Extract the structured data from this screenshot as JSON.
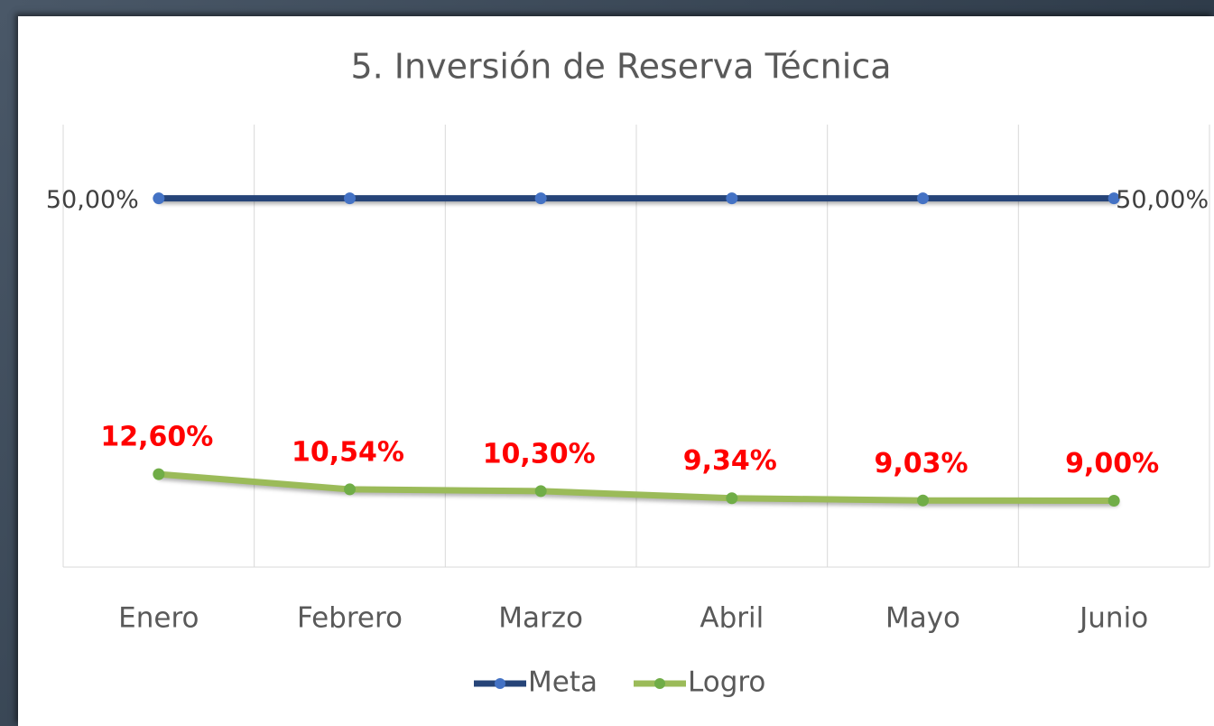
{
  "chart_data": {
    "type": "line",
    "title": "5. Inversión de Reserva Técnica",
    "categories": [
      "Enero",
      "Febrero",
      "Marzo",
      "Abril",
      "Mayo",
      "Junio"
    ],
    "ylim": [
      0,
      60
    ],
    "series": [
      {
        "name": "Meta",
        "color": "#264478",
        "marker_color": "#4472c4",
        "values": [
          50,
          50,
          50,
          50,
          50,
          50
        ],
        "value_labels": [
          "50,00%",
          null,
          null,
          null,
          null,
          "50,00%"
        ]
      },
      {
        "name": "Logro",
        "color": "#9bbb59",
        "marker_color": "#70ad47",
        "values": [
          12.6,
          10.54,
          10.3,
          9.34,
          9.03,
          9.0
        ],
        "value_labels": [
          "12,60%",
          "10,54%",
          "10,30%",
          "9,34%",
          "9,03%",
          "9,00%"
        ]
      }
    ],
    "legend": "bottom"
  }
}
